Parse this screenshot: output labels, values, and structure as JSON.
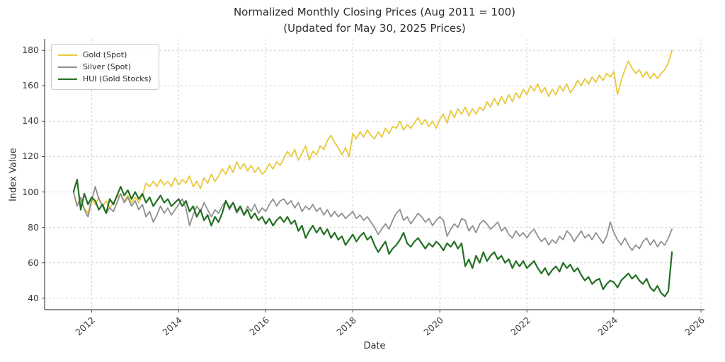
{
  "figure": {
    "title_line1": "Normalized Monthly Closing Prices (Aug 2011 = 100)",
    "title_line2": "(Updated for May 30, 2025 Prices)",
    "xlabel": "Date",
    "ylabel": "Index Value"
  },
  "chart_data": {
    "type": "line",
    "title": "Normalized Monthly Closing Prices (Aug 2011 = 100) (Updated for May 30, 2025 Prices)",
    "xlabel": "Date",
    "ylabel": "Index Value",
    "grid": true,
    "grid_style": "dashed",
    "legend_position": "upper left",
    "x_start_year": 2011,
    "x_start_month": 8,
    "x_step_months": 1,
    "x_end_label": "May 2025",
    "xlim": [
      2010.92,
      2026.08
    ],
    "ylim": [
      33.5,
      186.5
    ],
    "xticks": [
      2012,
      2014,
      2016,
      2018,
      2020,
      2022,
      2024,
      2026
    ],
    "yticks": [
      40,
      60,
      80,
      100,
      120,
      140,
      160,
      180
    ],
    "series": [
      {
        "name": "Gold (Spot)",
        "color": "#e8c83d",
        "line_width": 1.8,
        "values": [
          100,
          93,
          96,
          91,
          88,
          96,
          93,
          97,
          92,
          95,
          91,
          94,
          97,
          99,
          95,
          98,
          94,
          97,
          94,
          98,
          105,
          103,
          106,
          103,
          107,
          104,
          106,
          103,
          108,
          104,
          107,
          105,
          109,
          103,
          106,
          102,
          108,
          105,
          110,
          106,
          109,
          113,
          110,
          115,
          111,
          117,
          113,
          116,
          112,
          115,
          111,
          114,
          110,
          112,
          116,
          113,
          117,
          115,
          119,
          123,
          120,
          124,
          118,
          122,
          126,
          118,
          123,
          121,
          126,
          124,
          129,
          132,
          128,
          125,
          121,
          125,
          120,
          133,
          130,
          134,
          131,
          135,
          132,
          130,
          134,
          131,
          136,
          133,
          137,
          136,
          140,
          135,
          138,
          136,
          139,
          142,
          138,
          141,
          137,
          140,
          136,
          141,
          144,
          139,
          146,
          142,
          147,
          144,
          148,
          143,
          147,
          144,
          148,
          146,
          151,
          148,
          153,
          149,
          154,
          150,
          155,
          151,
          156,
          153,
          158,
          155,
          160,
          157,
          161,
          156,
          159,
          154,
          158,
          155,
          160,
          157,
          161,
          156,
          159,
          163,
          160,
          164,
          161,
          165,
          162,
          166,
          163,
          167,
          165,
          168,
          155,
          163,
          169,
          174,
          170,
          167,
          169,
          165,
          168,
          164,
          167,
          164,
          167,
          169,
          173,
          180
        ]
      },
      {
        "name": "Silver (Spot)",
        "color": "#909090",
        "line_width": 1.8,
        "values": [
          100,
          92,
          97,
          90,
          86,
          95,
          103,
          96,
          92,
          88,
          91,
          89,
          94,
          99,
          94,
          97,
          92,
          95,
          90,
          93,
          86,
          89,
          83,
          87,
          92,
          88,
          91,
          87,
          90,
          93,
          96,
          91,
          81,
          87,
          92,
          89,
          94,
          90,
          86,
          90,
          88,
          92,
          95,
          90,
          94,
          88,
          91,
          87,
          92,
          89,
          93,
          88,
          91,
          89,
          93,
          96,
          92,
          95,
          96,
          93,
          95,
          91,
          94,
          89,
          92,
          90,
          93,
          89,
          91,
          87,
          90,
          86,
          89,
          86,
          88,
          85,
          87,
          89,
          85,
          87,
          84,
          86,
          83,
          80,
          76,
          79,
          82,
          79,
          84,
          88,
          90,
          84,
          86,
          82,
          85,
          88,
          86,
          83,
          85,
          81,
          84,
          86,
          84,
          75,
          79,
          82,
          80,
          85,
          84,
          78,
          81,
          77,
          82,
          84,
          82,
          79,
          81,
          83,
          78,
          80,
          76,
          74,
          78,
          75,
          77,
          74,
          77,
          79,
          75,
          72,
          74,
          70,
          73,
          71,
          75,
          73,
          78,
          76,
          72,
          75,
          78,
          74,
          76,
          73,
          77,
          74,
          71,
          75,
          83,
          77,
          73,
          70,
          74,
          70,
          67,
          70,
          68,
          72,
          74,
          70,
          73,
          69,
          72,
          70,
          74,
          79
        ]
      },
      {
        "name": "HUI (Gold Stocks)",
        "color": "#237023",
        "line_width": 2.2,
        "values": [
          100,
          107,
          90,
          99,
          93,
          97,
          95,
          90,
          93,
          88,
          96,
          93,
          98,
          103,
          98,
          101,
          96,
          100,
          96,
          99,
          94,
          97,
          92,
          95,
          98,
          94,
          96,
          92,
          94,
          96,
          92,
          95,
          89,
          92,
          86,
          90,
          84,
          87,
          81,
          86,
          83,
          88,
          95,
          91,
          94,
          89,
          92,
          87,
          90,
          85,
          88,
          84,
          86,
          82,
          85,
          81,
          84,
          86,
          83,
          86,
          82,
          84,
          78,
          81,
          74,
          78,
          81,
          77,
          80,
          76,
          79,
          74,
          77,
          73,
          75,
          70,
          73,
          76,
          72,
          75,
          77,
          73,
          75,
          70,
          66,
          69,
          72,
          65,
          68,
          70,
          73,
          77,
          71,
          69,
          72,
          74,
          71,
          68,
          71,
          69,
          72,
          70,
          67,
          71,
          69,
          72,
          68,
          71,
          58,
          62,
          57,
          64,
          60,
          66,
          61,
          64,
          66,
          62,
          64,
          60,
          62,
          57,
          61,
          58,
          61,
          57,
          59,
          61,
          57,
          54,
          57,
          53,
          56,
          58,
          55,
          60,
          57,
          59,
          55,
          57,
          53,
          50,
          52,
          48,
          50,
          51,
          45,
          48,
          50,
          49,
          46,
          50,
          52,
          54,
          51,
          53,
          50,
          48,
          51,
          46,
          44,
          47,
          43,
          41,
          44,
          66
        ]
      }
    ]
  }
}
